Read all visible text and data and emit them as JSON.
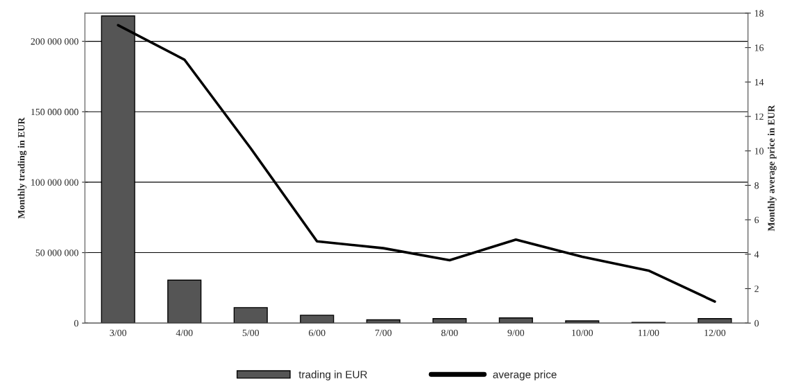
{
  "chart_data": {
    "type": "bar",
    "categories": [
      "3/00",
      "4/00",
      "5/00",
      "6/00",
      "7/00",
      "8/00",
      "9/00",
      "10/00",
      "11/00",
      "12/00"
    ],
    "series": [
      {
        "name": "trading in EUR",
        "color": "#555555",
        "values": [
          218000000,
          30500000,
          11000000,
          5600000,
          2300000,
          3200000,
          3700000,
          1600000,
          500000,
          3200000
        ]
      },
      {
        "name": "average price",
        "type": "line",
        "axis": "y2",
        "color": "#000000",
        "values": [
          17.3,
          15.3,
          10.15,
          4.75,
          4.35,
          3.65,
          4.85,
          3.85,
          3.05,
          1.25
        ]
      }
    ],
    "ylabel": "Monthly trading in EUR",
    "y2label": "Monthly average price in EUR",
    "ylim": [
      0,
      220000000
    ],
    "yticks": [
      0,
      {
        "value": 50000000,
        "label": "50 000 000"
      },
      {
        "value": 100000000,
        "label": "100 000 000"
      },
      {
        "value": 150000000,
        "label": "150 000 000"
      },
      {
        "value": 200000000,
        "label": "200 000 000"
      }
    ],
    "y2lim": [
      0,
      18
    ],
    "y2ticks": [
      0,
      2,
      4,
      6,
      8,
      10,
      12,
      14,
      16,
      18
    ],
    "grid": "y",
    "legend": "bottom",
    "marker": "none",
    "line_style": "solid"
  }
}
